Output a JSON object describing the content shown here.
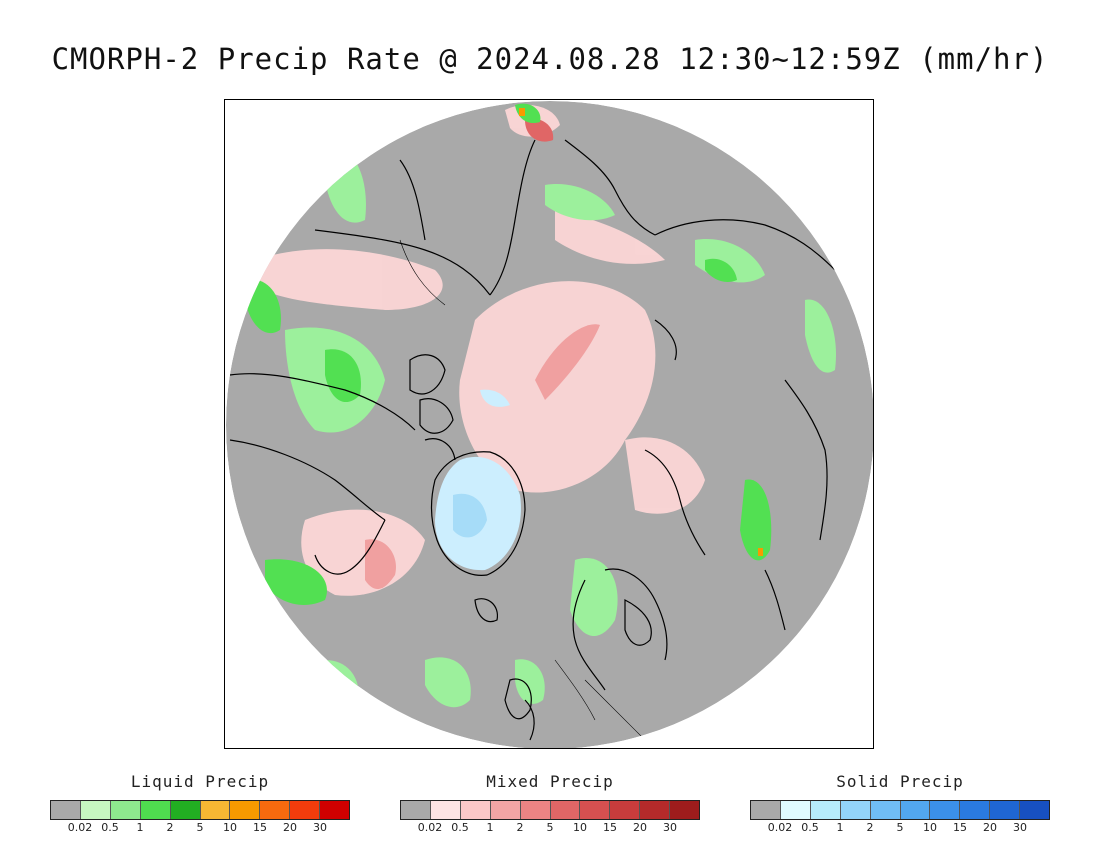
{
  "title": "CMORPH-2 Precip Rate @ 2024.08.28 12:30~12:59Z (mm/hr)",
  "map": {
    "projection": "polar stereographic, north pole",
    "colors": {
      "no_precip": "#a9a9a9",
      "light_rain": "#9cf09c",
      "moderate_rain": "#52e052",
      "mixed_light": "#fcd6d6",
      "mixed_moderate": "#f0a0a0",
      "mixed_heavy": "#d85c5c",
      "snow_light": "#cceefe",
      "snow_moderate": "#a6dcf8",
      "coastline": "#000000",
      "heavy_rain": "#f79a00"
    }
  },
  "legends": [
    {
      "title": "Liquid Precip",
      "colors": [
        "#a9a9a9",
        "#c6f7c0",
        "#8ee98e",
        "#4fdc4f",
        "#22ae22",
        "#f7b733",
        "#f79a00",
        "#f76a0e",
        "#f23c0c",
        "#d10000"
      ],
      "ticks": [
        "0.02",
        "0.5",
        "1",
        "2",
        "5",
        "10",
        "15",
        "20",
        "30"
      ]
    },
    {
      "title": "Mixed Precip",
      "colors": [
        "#a9a9a9",
        "#fde4e4",
        "#fbc8c8",
        "#f2a5a5",
        "#ec8484",
        "#e06666",
        "#d65050",
        "#c83c3c",
        "#b42a2a",
        "#9e1c1c"
      ],
      "ticks": [
        "0.02",
        "0.5",
        "1",
        "2",
        "5",
        "10",
        "15",
        "20",
        "30"
      ]
    },
    {
      "title": "Solid Precip",
      "colors": [
        "#a9a9a9",
        "#e0fbff",
        "#b6ecfb",
        "#93d4fa",
        "#70bdf5",
        "#52a7f0",
        "#3b90ea",
        "#2a7ae0",
        "#1f66d3",
        "#1750c2"
      ],
      "ticks": [
        "0.02",
        "0.5",
        "1",
        "2",
        "5",
        "10",
        "15",
        "20",
        "30"
      ]
    }
  ]
}
